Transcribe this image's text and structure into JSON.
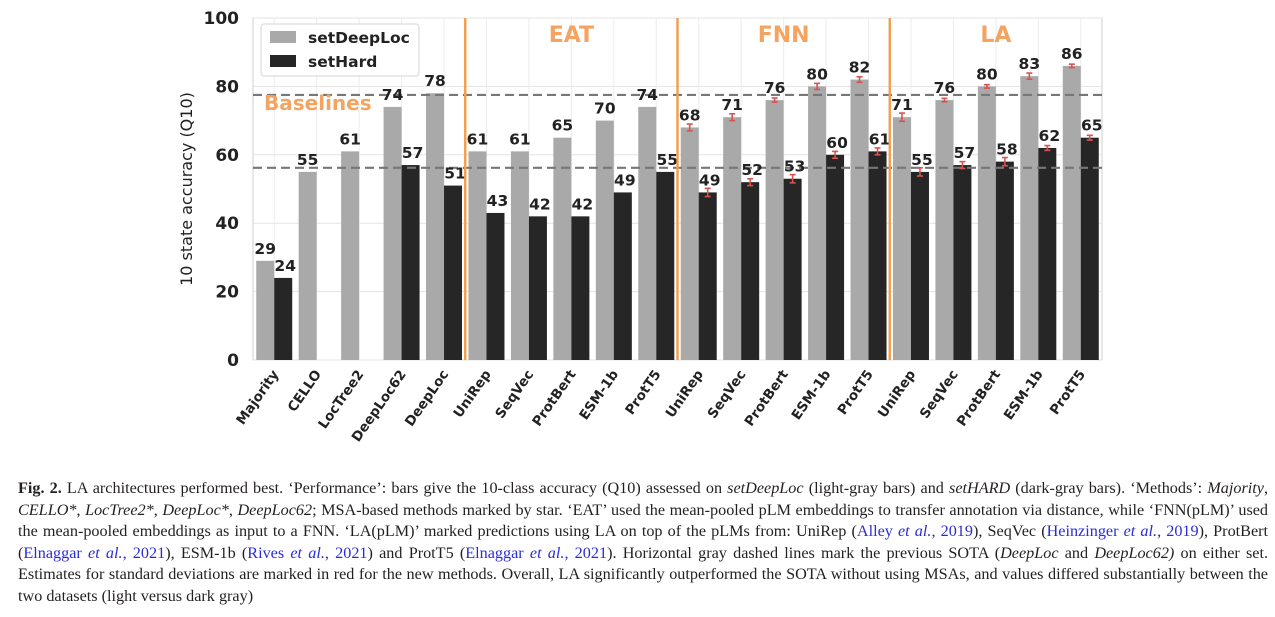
{
  "chart_data": {
    "type": "bar",
    "ylabel": "10 state accuracy (Q10)",
    "ylim": [
      0,
      100
    ],
    "yticks": [
      0,
      20,
      40,
      60,
      80,
      100
    ],
    "grid": true,
    "legend_position": "top-left",
    "categories": [
      "Majority",
      "CELLO",
      "LocTree2",
      "DeepLoc62",
      "DeepLoc",
      "UniRep",
      "SeqVec",
      "ProtBert",
      "ESM-1b",
      "ProtT5",
      "UniRep",
      "SeqVec",
      "ProtBert",
      "ESM-1b",
      "ProtT5",
      "UniRep",
      "SeqVec",
      "ProtBert",
      "ESM-1b",
      "ProtT5"
    ],
    "series": [
      {
        "name": "setDeepLoc",
        "color": "#a9a9a9",
        "values": [
          29,
          55,
          61,
          74,
          78,
          61,
          61,
          65,
          70,
          74,
          68,
          71,
          76,
          80,
          82,
          71,
          76,
          80,
          83,
          86
        ],
        "error_bars": [
          null,
          null,
          null,
          null,
          null,
          null,
          null,
          null,
          null,
          null,
          1.0,
          1.0,
          0.6,
          0.9,
          0.8,
          1.2,
          0.5,
          0.5,
          0.9,
          0.5
        ]
      },
      {
        "name": "setHard",
        "color": "#262626",
        "values": [
          24,
          null,
          null,
          57,
          51,
          43,
          42,
          42,
          49,
          55,
          49,
          52,
          53,
          60,
          61,
          55,
          57,
          58,
          62,
          65
        ],
        "error_bars": [
          null,
          null,
          null,
          null,
          null,
          null,
          null,
          null,
          null,
          null,
          1.2,
          1.0,
          1.2,
          1.0,
          1.0,
          1.2,
          1.0,
          1.2,
          0.7,
          0.7
        ]
      }
    ],
    "value_labels_deeploc": [
      "29",
      "55",
      "61",
      "74",
      "78",
      "61",
      "61",
      "65",
      "70",
      "74",
      "68",
      "71",
      "76",
      "80",
      "82",
      "71",
      "76",
      "80",
      "83",
      "86"
    ],
    "value_labels_hard": [
      "24",
      "",
      "",
      "57",
      "51",
      "43",
      "42",
      "42",
      "49",
      "55",
      "49",
      "52",
      "53",
      "60",
      "61",
      "55",
      "57",
      "58",
      "62",
      "65"
    ],
    "group_labels": [
      "Baselines",
      "EAT",
      "FNN",
      "LA"
    ],
    "reference_lines": [
      {
        "value": 77.5,
        "style": "dashed",
        "color": "#777777"
      },
      {
        "value": 56.2,
        "style": "dashed",
        "color": "#777777"
      }
    ],
    "error_bar_color": "#d9534f",
    "group_color": "#f4a460",
    "divider_color": "#f39c4a"
  },
  "caption": {
    "fig_label": "Fig. 2.",
    "text_html": " LA architectures performed best. ‘Performance’: bars give the 10-class accuracy (Q10) assessed on <i>setDeepLoc</i> (light-gray bars) and <i>setHARD</i> (dark-gray bars). ‘Methods’: <i>Majority</i>, <i>CELLO*</i>, <i>LocTree2*</i>, <i>DeepLoc*</i>, <i>DeepLoc62</i>; MSA-based methods marked by star. ‘EAT’ used the mean-pooled pLM embeddings to transfer annotation via distance, while ‘FNN(pLM)’ used the mean-pooled embeddings as input to a FNN. ‘LA(pLM)’ marked predictions using LA on top of the pLMs from: UniRep (<span class=\"lnk\">Alley <i>et al.</i>, 2019</span>), SeqVec (<span class=\"lnk\">Heinzinger <i>et al.</i>, 2019</span>), ProtBert (<span class=\"lnk\">Elnaggar <i>et al.</i>, 2021</span>), ESM-1b (<span class=\"lnk\">Rives <i>et al.</i>, 2021</span>) and ProtT5 (<span class=\"lnk\">Elnaggar <i>et al.</i>, 2021</span>). Horizontal gray dashed lines mark the previous SOTA (<i>DeepLoc</i> and <i>DeepLoc62)</i> on either set. Estimates for standard deviations are marked in red for the new methods. Overall, LA significantly outperformed the SOTA without using MSAs, and values differed substantially between the two datasets (light versus dark gray)"
  }
}
